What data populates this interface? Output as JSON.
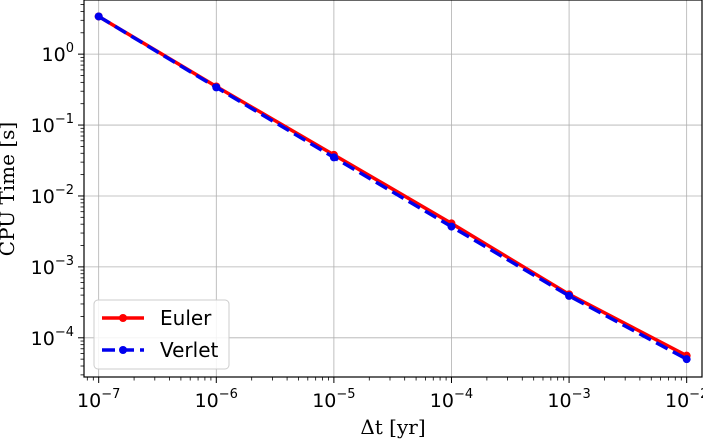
{
  "chart_data": {
    "type": "line",
    "title": "",
    "xlabel": "Δt [yr]",
    "ylabel": "CPU Time [s]",
    "xscale": "log",
    "yscale": "log",
    "xlim": [
      7.5e-08,
      0.0135
    ],
    "ylim": [
      2.8e-05,
      5.8
    ],
    "grid": true,
    "legend_position": "lower-left",
    "x_ticks": [
      {
        "base": "10",
        "exp": "−7",
        "value": 1e-07
      },
      {
        "base": "10",
        "exp": "−6",
        "value": 1e-06
      },
      {
        "base": "10",
        "exp": "−5",
        "value": 1e-05
      },
      {
        "base": "10",
        "exp": "−4",
        "value": 0.0001
      },
      {
        "base": "10",
        "exp": "−3",
        "value": 0.001
      },
      {
        "base": "10",
        "exp": "−2",
        "value": 0.01
      }
    ],
    "y_ticks": [
      {
        "base": "10",
        "exp": "0",
        "value": 1
      },
      {
        "base": "10",
        "exp": "−1",
        "value": 0.1
      },
      {
        "base": "10",
        "exp": "−2",
        "value": 0.01
      },
      {
        "base": "10",
        "exp": "−3",
        "value": 0.001
      },
      {
        "base": "10",
        "exp": "−4",
        "value": 0.0001
      }
    ],
    "x": [
      1e-07,
      1e-06,
      1e-05,
      0.0001,
      0.001,
      0.01
    ],
    "series": [
      {
        "name": "Euler",
        "color": "#ff0000",
        "linestyle": "solid",
        "marker": "circle",
        "values": [
          3.4,
          0.35,
          0.038,
          0.0041,
          0.00041,
          5.6e-05
        ]
      },
      {
        "name": "Verlet",
        "color": "#0000ee",
        "linestyle": "dashed",
        "marker": "circle",
        "values": [
          3.4,
          0.34,
          0.035,
          0.0037,
          0.00039,
          5e-05
        ]
      }
    ]
  }
}
